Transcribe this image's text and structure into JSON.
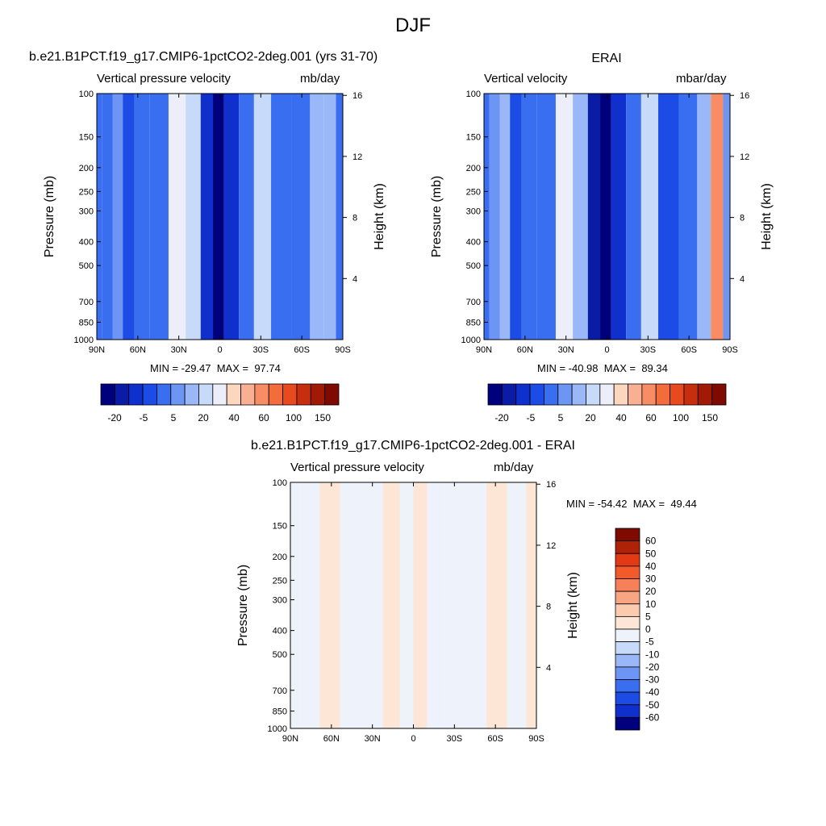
{
  "figure": {
    "title": "DJF",
    "panels": [
      {
        "id": "model",
        "left_header": "b.e21.B1PCT.f19_g17.CMIP6-1pctCO2-2deg.001 (yrs 31-70)",
        "center_header": "",
        "field_label": "Vertical pressure velocity",
        "units": "mb/day",
        "stats": "MIN = -29.47  MAX =  97.74"
      },
      {
        "id": "obs",
        "left_header": "",
        "center_header": "ERAI",
        "field_label": "Vertical velocity",
        "units": "mbar/day",
        "stats": "MIN = -40.98  MAX =  89.34"
      },
      {
        "id": "diff",
        "left_header": "",
        "center_header": "b.e21.B1PCT.f19_g17.CMIP6-1pctCO2-2deg.001 - ERAI",
        "field_label": "Vertical pressure velocity",
        "units": "mb/day",
        "stats": "MIN = -54.42  MAX =  49.44"
      }
    ]
  },
  "chart_data": [
    {
      "type": "heatmap",
      "title": "b.e21.B1PCT.f19_g17.CMIP6-1pctCO2-2deg.001 (yrs 31-70)",
      "subtitle": "Vertical pressure velocity",
      "units": "mb/day",
      "xlabel": "",
      "ylabel": "Pressure (mb)",
      "y2label": "Height (km)",
      "x_ticks": [
        "90N",
        "60N",
        "30N",
        "0",
        "30S",
        "60S",
        "90S"
      ],
      "y_ticks": [
        "100",
        "150",
        "200",
        "250",
        "300",
        "400",
        "500",
        "700",
        "850",
        "1000"
      ],
      "y2_ticks": [
        "16",
        "12",
        "8",
        "4"
      ],
      "min": -29.47,
      "max": 97.74,
      "colorbar_labels": [
        "-20",
        "-5",
        "5",
        "20",
        "40",
        "60",
        "100",
        "150"
      ],
      "colors": [
        "#00007c",
        "#0a1ba6",
        "#0f30cc",
        "#1c4be6",
        "#3a6ef0",
        "#6c95f4",
        "#9ab8f7",
        "#c8daf9",
        "#eceff9",
        "#fcd6bd",
        "#f9b092",
        "#f88c64",
        "#f36d3c",
        "#e84a1e",
        "#c62e0e",
        "#a01a06",
        "#7e0a02"
      ],
      "bands": [
        {
          "lat": 90,
          "value": -10
        },
        {
          "lat": 82,
          "value": -8
        },
        {
          "lat": 75,
          "value": -4
        },
        {
          "lat": 67,
          "value": -12
        },
        {
          "lat": 58,
          "value": -6
        },
        {
          "lat": 45,
          "value": -8
        },
        {
          "lat": 30,
          "value": 12
        },
        {
          "lat": 20,
          "value": 5
        },
        {
          "lat": 8,
          "value": -20
        },
        {
          "lat": 2,
          "value": -28
        },
        {
          "lat": -8,
          "value": -18
        },
        {
          "lat": -20,
          "value": -6
        },
        {
          "lat": -30,
          "value": 8
        },
        {
          "lat": -45,
          "value": -10
        },
        {
          "lat": -60,
          "value": -6
        },
        {
          "lat": -72,
          "value": 0
        },
        {
          "lat": -80,
          "value": 4
        },
        {
          "lat": -90,
          "value": -8
        }
      ]
    },
    {
      "type": "heatmap",
      "title": "ERAI",
      "subtitle": "Vertical velocity",
      "units": "mbar/day",
      "xlabel": "",
      "ylabel": "Pressure (mb)",
      "y2label": "Height (km)",
      "x_ticks": [
        "90N",
        "60N",
        "30N",
        "0",
        "30S",
        "60S",
        "90S"
      ],
      "y_ticks": [
        "100",
        "150",
        "200",
        "250",
        "300",
        "400",
        "500",
        "700",
        "850",
        "1000"
      ],
      "y2_ticks": [
        "16",
        "12",
        "8",
        "4"
      ],
      "min": -40.98,
      "max": 89.34,
      "colorbar_labels": [
        "-20",
        "-5",
        "5",
        "20",
        "40",
        "60",
        "100",
        "150"
      ],
      "colors": [
        "#00007c",
        "#0a1ba6",
        "#0f30cc",
        "#1c4be6",
        "#3a6ef0",
        "#6c95f4",
        "#9ab8f7",
        "#c8daf9",
        "#eceff9",
        "#fcd6bd",
        "#f9b092",
        "#f88c64",
        "#f36d3c",
        "#e84a1e",
        "#c62e0e",
        "#a01a06",
        "#7e0a02"
      ],
      "bands": [
        {
          "lat": 90,
          "value": -8
        },
        {
          "lat": 82,
          "value": -4
        },
        {
          "lat": 75,
          "value": 0
        },
        {
          "lat": 67,
          "value": -14
        },
        {
          "lat": 58,
          "value": -8
        },
        {
          "lat": 45,
          "value": -10
        },
        {
          "lat": 30,
          "value": 10
        },
        {
          "lat": 20,
          "value": 3
        },
        {
          "lat": 8,
          "value": -22
        },
        {
          "lat": 2,
          "value": -32
        },
        {
          "lat": -8,
          "value": -20
        },
        {
          "lat": -20,
          "value": -8
        },
        {
          "lat": -30,
          "value": 5
        },
        {
          "lat": -45,
          "value": -12
        },
        {
          "lat": -60,
          "value": -8
        },
        {
          "lat": -72,
          "value": 2
        },
        {
          "lat": -80,
          "value": 40
        },
        {
          "lat": -90,
          "value": -4
        }
      ]
    },
    {
      "type": "heatmap",
      "title": "b.e21.B1PCT.f19_g17.CMIP6-1pctCO2-2deg.001 - ERAI",
      "subtitle": "Vertical pressure velocity",
      "units": "mb/day",
      "xlabel": "",
      "ylabel": "Pressure (mb)",
      "y2label": "Height (km)",
      "x_ticks": [
        "90N",
        "60N",
        "30N",
        "0",
        "30S",
        "60S",
        "90S"
      ],
      "y_ticks": [
        "100",
        "150",
        "200",
        "250",
        "300",
        "400",
        "500",
        "700",
        "850",
        "1000"
      ],
      "y2_ticks": [
        "16",
        "12",
        "8",
        "4"
      ],
      "min": -54.42,
      "max": 49.44,
      "colorbar_labels": [
        "60",
        "50",
        "40",
        "30",
        "20",
        "10",
        "5",
        "0",
        "-5",
        "-10",
        "-20",
        "-30",
        "-40",
        "-50",
        "-60"
      ],
      "colors": [
        "#7e0a02",
        "#b02208",
        "#e23a14",
        "#f35a2b",
        "#f6805a",
        "#f8a583",
        "#fbcbb0",
        "#fde6d6",
        "#eef3fb",
        "#c8daf9",
        "#9ab8f7",
        "#6c95f4",
        "#3a6ef0",
        "#1c4be6",
        "#0f30cc",
        "#00007c"
      ],
      "bands": [
        {
          "lat": 90,
          "value": -3
        },
        {
          "lat": 75,
          "value": -2
        },
        {
          "lat": 62,
          "value": 2
        },
        {
          "lat": 45,
          "value": -2
        },
        {
          "lat": 30,
          "value": -1
        },
        {
          "lat": 15,
          "value": 3
        },
        {
          "lat": 5,
          "value": -2
        },
        {
          "lat": -5,
          "value": 4
        },
        {
          "lat": -15,
          "value": -1
        },
        {
          "lat": -30,
          "value": -2
        },
        {
          "lat": -45,
          "value": -1
        },
        {
          "lat": -62,
          "value": 2
        },
        {
          "lat": -75,
          "value": -2
        },
        {
          "lat": -90,
          "value": 1
        }
      ]
    }
  ]
}
